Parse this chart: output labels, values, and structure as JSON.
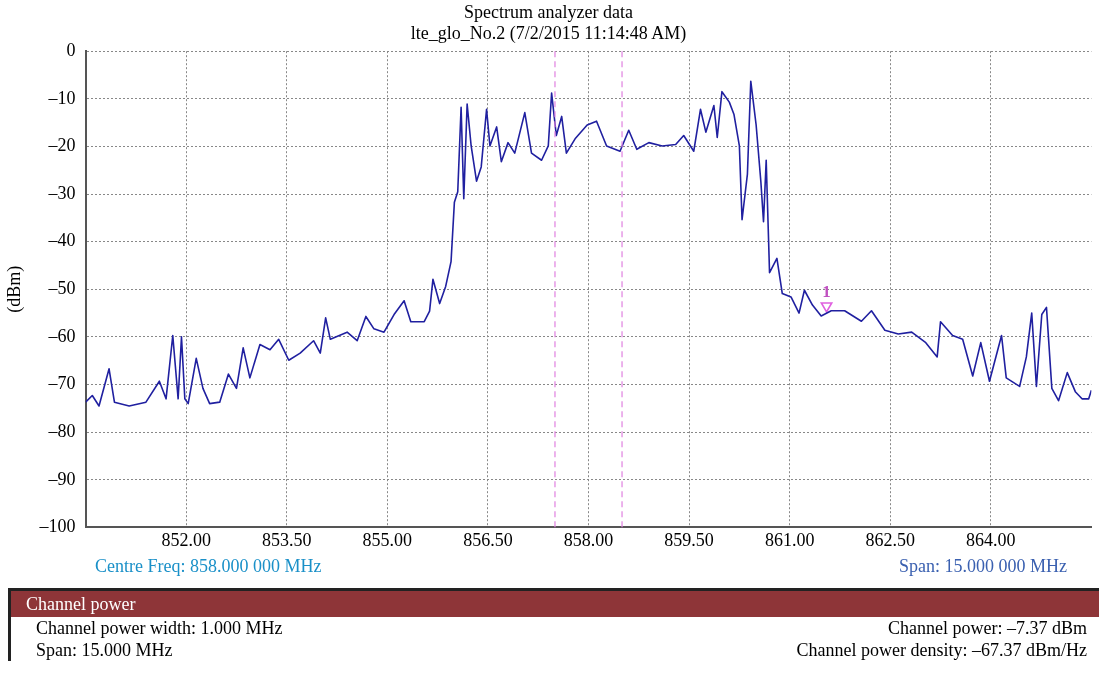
{
  "chart_data": {
    "type": "line",
    "title": "Spectrum analyzer data",
    "subtitle": "lte_glo_No.2 (7/2/2015 11:14:48 AM)",
    "ylabel": "(dBm)",
    "x": [
      850.5,
      850.6,
      850.7,
      850.85,
      850.93,
      851.15,
      851.4,
      851.6,
      851.7,
      851.8,
      851.88,
      851.93,
      851.98,
      852.03,
      852.15,
      852.25,
      852.35,
      852.5,
      852.63,
      852.75,
      852.85,
      852.95,
      853.1,
      853.25,
      853.38,
      853.53,
      853.7,
      853.9,
      854.0,
      854.08,
      854.15,
      854.4,
      854.55,
      854.68,
      854.8,
      854.95,
      855.1,
      855.25,
      855.35,
      855.55,
      855.63,
      855.68,
      855.78,
      855.87,
      855.95,
      856.0,
      856.05,
      856.1,
      856.14,
      856.19,
      856.25,
      856.33,
      856.4,
      856.48,
      856.53,
      856.63,
      856.7,
      856.8,
      856.9,
      857.05,
      857.15,
      857.3,
      857.4,
      857.45,
      857.52,
      857.6,
      857.67,
      857.8,
      857.98,
      858.12,
      858.27,
      858.47,
      858.6,
      858.72,
      858.9,
      859.1,
      859.3,
      859.42,
      859.57,
      859.67,
      859.75,
      859.87,
      859.92,
      859.99,
      860.1,
      860.17,
      860.25,
      860.29,
      860.37,
      860.42,
      860.5,
      860.57,
      860.61,
      860.65,
      860.7,
      860.81,
      860.89,
      861.02,
      861.14,
      861.22,
      861.34,
      861.47,
      861.62,
      861.82,
      862.07,
      862.22,
      862.42,
      862.62,
      862.82,
      863.03,
      863.2,
      863.25,
      863.43,
      863.58,
      863.73,
      863.85,
      863.98,
      864.16,
      864.23,
      864.43,
      864.53,
      864.61,
      864.68,
      864.76,
      864.83,
      864.91,
      865.01,
      865.14,
      865.26,
      865.36,
      865.46,
      865.5
    ],
    "series": [
      {
        "color": "#2020a0",
        "values": [
          -73.7,
          -72.3,
          -74.5,
          -66.7,
          -73.7,
          -74.5,
          -73.7,
          -69.3,
          -73,
          -59.7,
          -73,
          -60,
          -73,
          -74,
          -64.5,
          -70.8,
          -74,
          -73.7,
          -67.8,
          -70.8,
          -62.3,
          -68.6,
          -61.6,
          -62.7,
          -60.5,
          -64.9,
          -63.4,
          -60.8,
          -63.4,
          -56,
          -60.5,
          -59,
          -60.8,
          -55.7,
          -58.3,
          -59,
          -55.3,
          -52.4,
          -56.8,
          -56.8,
          -54.6,
          -47.9,
          -53,
          -49.4,
          -44.2,
          -31.7,
          -29.5,
          -11.8,
          -31,
          -11.1,
          -19.9,
          -27.3,
          -24.3,
          -12.2,
          -19.9,
          -15.9,
          -23.2,
          -19.2,
          -21.4,
          -12.9,
          -21.4,
          -22.9,
          -19.9,
          -8.8,
          -17.7,
          -13.7,
          -21.4,
          -18.4,
          -15.5,
          -14.7,
          -19.9,
          -21,
          -16.6,
          -20.6,
          -19.2,
          -19.9,
          -19.6,
          -17.7,
          -21,
          -12.2,
          -17,
          -11.4,
          -18.1,
          -8.5,
          -10.7,
          -13.3,
          -19.9,
          -35.4,
          -25.8,
          -6.3,
          -15.5,
          -27.3,
          -35.8,
          -22.9,
          -46.5,
          -43.5,
          -50.9,
          -51.6,
          -55,
          -50.2,
          -53.3,
          -55.6,
          -54.5,
          -54.5,
          -56.7,
          -54.5,
          -58.6,
          -59.4,
          -59,
          -61.2,
          -64.2,
          -56.8,
          -59.7,
          -60.5,
          -68.2,
          -61.2,
          -69.3,
          -59.7,
          -68.6,
          -70.4,
          -64.2,
          -55,
          -70.4,
          -55.3,
          -53.8,
          -70.8,
          -73.4,
          -67.5,
          -71.5,
          -73,
          -73,
          -71.2
        ]
      },
      {
        "type": "scatter",
        "color": "#e060e0",
        "marker": "triangle",
        "x": [
          861.55
        ],
        "values": [
          -53.5
        ]
      }
    ],
    "xlim": [
      850.5,
      865.5
    ],
    "xticks": [
      {
        "value": 852,
        "label": "852.00"
      },
      {
        "value": 853.5,
        "label": "853.50"
      },
      {
        "value": 855,
        "label": "855.00"
      },
      {
        "value": 856.5,
        "label": "856.50"
      },
      {
        "value": 858,
        "label": "858.00"
      },
      {
        "value": 859.5,
        "label": "859.50"
      },
      {
        "value": 861,
        "label": "861.00"
      },
      {
        "value": 862.5,
        "label": "862.50"
      },
      {
        "value": 864,
        "label": "864.00"
      }
    ],
    "ylim": [
      -100,
      0
    ],
    "yticks": [
      {
        "value": -100,
        "label": "–100"
      },
      {
        "value": -90,
        "label": "–90"
      },
      {
        "value": -80,
        "label": "–80"
      },
      {
        "value": -70,
        "label": "–70"
      },
      {
        "value": -60,
        "label": "–60"
      },
      {
        "value": -50,
        "label": "–50"
      },
      {
        "value": -40,
        "label": "–40"
      },
      {
        "value": -30,
        "label": "–30"
      },
      {
        "value": -20,
        "label": "–20"
      },
      {
        "value": -10,
        "label": "–10"
      },
      0
    ],
    "grid": true,
    "marker": "none",
    "line_style": "solid",
    "legend": false,
    "ref_lines": [
      {
        "axis": "x",
        "value": 857.5,
        "color": "#e080e0",
        "line_style": "dashed"
      },
      {
        "axis": "x",
        "value": 858.5,
        "color": "#e080e0",
        "line_style": "dashed"
      }
    ],
    "annotations": [
      {
        "text": "1",
        "x": 861.55,
        "y": -53.5
      },
      "Centre Freq: 858.000 000 MHz",
      "Span: 15.000 000 MHz",
      "Channel power",
      "Channel power width: 1.000 MHz",
      "Channel power: –7.37 dBm",
      "Span: 15.000 MHz",
      "Channel power density: –67.37 dBm/Hz"
    ]
  }
}
